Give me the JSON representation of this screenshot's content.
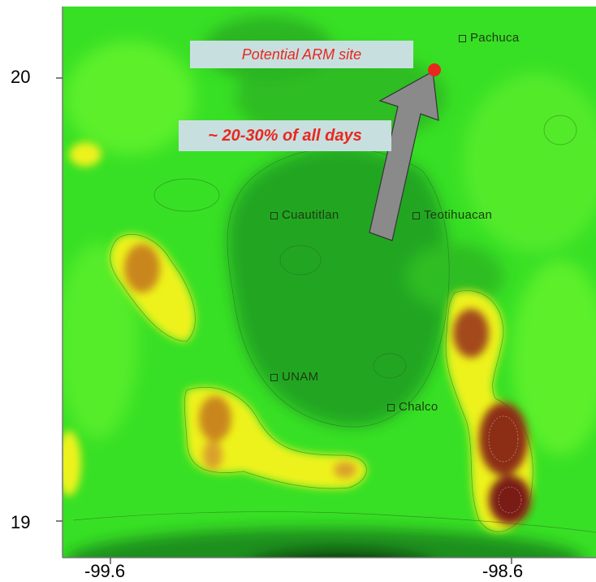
{
  "axes": {
    "x_ticks": [
      "-99.6",
      "-98.6"
    ],
    "y_ticks": [
      "20",
      "19"
    ]
  },
  "places": [
    {
      "name": "Pachuca"
    },
    {
      "name": "Cuautitlan"
    },
    {
      "name": "Teotihuacan"
    },
    {
      "name": "UNAM"
    },
    {
      "name": "Chalco"
    }
  ],
  "annotations": {
    "site_label": "Potential ARM site",
    "frequency_label": "~ 20-30% of all days"
  },
  "colors": {
    "site_marker": "#e8281e",
    "callout_text": "#e8281e",
    "callout_bg": "#c8dfe0",
    "arrow": "#8a8a8a",
    "low_elevation": "#1f8f1f",
    "mid_elevation": "#33dd22",
    "high_elevation": "#f2f21a",
    "peak_elevation": "#7a1c14"
  }
}
